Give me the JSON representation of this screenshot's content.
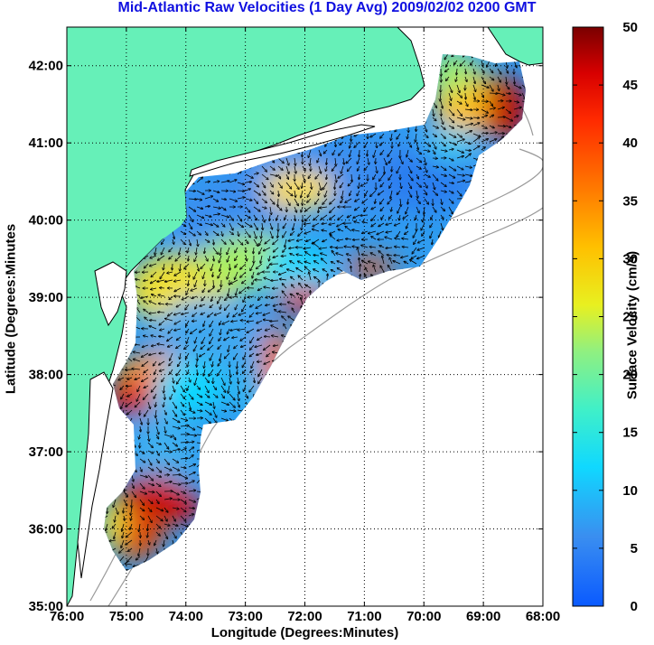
{
  "title": "Mid-Atlantic Raw Velocities (1 Day Avg) 2009/02/02 0200 GMT",
  "map": {
    "x_axis_label": "Longitude (Degrees:Minutes)",
    "y_axis_label": "Latitude (Degrees:Minutes",
    "x_ticks": [
      {
        "label": "76:00",
        "lon": -76
      },
      {
        "label": "75:00",
        "lon": -75
      },
      {
        "label": "74:00",
        "lon": -74
      },
      {
        "label": "73:00",
        "lon": -73
      },
      {
        "label": "72:00",
        "lon": -72
      },
      {
        "label": "71:00",
        "lon": -71
      },
      {
        "label": "70:00",
        "lon": -70
      },
      {
        "label": "69:00",
        "lon": -69
      },
      {
        "label": "68:00",
        "lon": -68
      }
    ],
    "y_ticks": [
      {
        "label": "35:00",
        "lat": 35
      },
      {
        "label": "36:00",
        "lat": 36
      },
      {
        "label": "37:00",
        "lat": 37
      },
      {
        "label": "38:00",
        "lat": 38
      },
      {
        "label": "39:00",
        "lat": 39
      },
      {
        "label": "40:00",
        "lat": 40
      },
      {
        "label": "41:00",
        "lat": 41
      },
      {
        "label": "42:00",
        "lat": 42
      }
    ],
    "lon_range": [
      -76,
      -68
    ],
    "lat_range": [
      35,
      42.5
    ],
    "grid": "dotted",
    "land_color": "#66f0b8",
    "coast_color": "#000000",
    "bathymetry_color": "#9a9a9a"
  },
  "colorbar": {
    "label": "Surface Velocity (cm/s)",
    "range": [
      0,
      50
    ],
    "ticks": [
      "0",
      "5",
      "10",
      "15",
      "20",
      "25",
      "30",
      "35",
      "40",
      "45",
      "50"
    ],
    "colormap": "jet"
  }
}
